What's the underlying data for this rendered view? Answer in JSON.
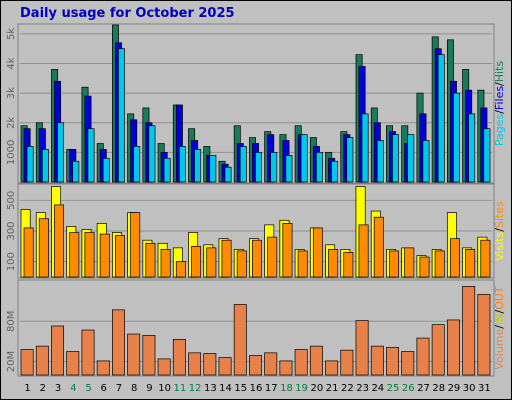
{
  "chart_data": [
    {
      "type": "bar",
      "title": "Daily usage for October 2025",
      "legend_separator": "/",
      "ylim": [
        0,
        5300
      ],
      "yticks": [
        1000,
        {
          "value": 2000,
          "label": "2k"
        },
        {
          "value": 3000,
          "label": "3k"
        },
        {
          "value": 4000,
          "label": "4k"
        },
        {
          "value": 5000,
          "label": "5k"
        }
      ],
      "series": [
        {
          "name": "Pages",
          "color": "#00c8e8",
          "values": [
            1200,
            1100,
            2000,
            700,
            1800,
            800,
            4500,
            1200,
            1900,
            800,
            1200,
            1100,
            900,
            500,
            1200,
            1000,
            1000,
            900,
            1600,
            1000,
            700,
            1500,
            2300,
            1400,
            1600,
            1600,
            1400,
            4300,
            3000,
            2300,
            1800
          ]
        },
        {
          "name": "Files",
          "color": "#0000d8",
          "values": [
            1800,
            1800,
            3400,
            1100,
            2900,
            1100,
            4700,
            2100,
            2000,
            1000,
            2600,
            1400,
            900,
            600,
            1300,
            1300,
            1600,
            1400,
            1600,
            1200,
            800,
            1600,
            3900,
            2000,
            1700,
            1300,
            2300,
            4500,
            3400,
            3100,
            2500
          ]
        },
        {
          "name": "Hits",
          "color": "#1a7a5c",
          "values": [
            1900,
            2000,
            3800,
            1100,
            3200,
            1300,
            5300,
            2300,
            2500,
            1300,
            2600,
            1800,
            1200,
            700,
            1900,
            1500,
            1700,
            1600,
            1900,
            1500,
            1000,
            1700,
            4300,
            2500,
            1900,
            1900,
            3000,
            4900,
            4800,
            3800,
            3100
          ]
        }
      ]
    },
    {
      "type": "bar",
      "legend_separator": "/",
      "ylim": [
        0,
        600
      ],
      "yticks": [
        100,
        300,
        500
      ],
      "series": [
        {
          "name": "Visits",
          "color": "#ffff00",
          "values": [
            440,
            420,
            590,
            330,
            310,
            350,
            290,
            420,
            240,
            220,
            190,
            290,
            210,
            250,
            180,
            250,
            340,
            370,
            180,
            320,
            210,
            180,
            590,
            430,
            180,
            190,
            140,
            180,
            420,
            190,
            260
          ]
        },
        {
          "name": "Sites",
          "color": "#ff8c00",
          "values": [
            320,
            380,
            470,
            290,
            290,
            280,
            270,
            420,
            220,
            180,
            100,
            200,
            190,
            240,
            170,
            240,
            260,
            350,
            170,
            320,
            180,
            160,
            340,
            390,
            170,
            190,
            130,
            170,
            250,
            180,
            240
          ]
        }
      ]
    },
    {
      "type": "bar",
      "legend_separator": "/",
      "ylim": [
        0,
        140
      ],
      "yticks": [
        {
          "value": 20,
          "label": "20M"
        },
        {
          "value": 80,
          "label": "80M"
        }
      ],
      "series": [
        {
          "name": "Volume",
          "color": "#e8804a",
          "values": [
            38,
            43,
            73,
            35,
            67,
            21,
            97,
            61,
            59,
            24,
            53,
            33,
            32,
            26,
            105,
            29,
            33,
            21,
            38,
            43,
            21,
            37,
            81,
            43,
            41,
            35,
            55,
            75,
            82,
            132,
            120
          ]
        }
      ],
      "legend_extra": [
        {
          "name": "IN",
          "color": "#c8c800"
        },
        {
          "name": "OUT",
          "color": "#ff8000"
        }
      ],
      "categories": [
        "1",
        "2",
        "3",
        "4",
        "5",
        "6",
        "7",
        "8",
        "9",
        "10",
        "11",
        "12",
        "13",
        "14",
        "15",
        "16",
        "17",
        "18",
        "19",
        "20",
        "21",
        "22",
        "23",
        "24",
        "25",
        "26",
        "27",
        "28",
        "29",
        "30",
        "31"
      ],
      "category_colors": [
        "#000000",
        "#000000",
        "#000000",
        "#008040",
        "#008040",
        "#000000",
        "#000000",
        "#000000",
        "#000000",
        "#000000",
        "#008040",
        "#008040",
        "#000000",
        "#000000",
        "#000000",
        "#000000",
        "#000000",
        "#008040",
        "#008040",
        "#000000",
        "#000000",
        "#000000",
        "#000000",
        "#000000",
        "#008040",
        "#008040",
        "#000000",
        "#000000",
        "#000000",
        "#000000",
        "#000000"
      ]
    }
  ]
}
